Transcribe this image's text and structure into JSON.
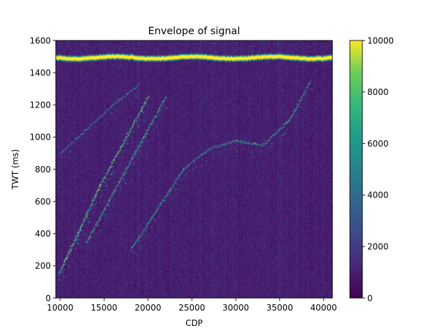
{
  "chart_data": {
    "type": "heatmap",
    "title": "Envelope of signal",
    "xlabel": "CDP",
    "ylabel": "TWT (ms)",
    "xlim": [
      9500,
      41000
    ],
    "ylim": [
      0,
      1600
    ],
    "x_ticks": [
      10000,
      15000,
      20000,
      25000,
      30000,
      35000,
      40000
    ],
    "y_ticks": [
      0,
      200,
      400,
      600,
      800,
      1000,
      1200,
      1400,
      1600
    ],
    "colorbar": {
      "colormap": "viridis",
      "range": [
        0,
        10000
      ],
      "ticks": [
        0,
        2000,
        4000,
        6000,
        8000,
        10000
      ]
    },
    "features": {
      "seafloor_band": {
        "twt_ms": 1495,
        "amplitude": 10000
      },
      "reflectors": [
        {
          "cdp": [
            9800,
            12000,
            14500,
            17500,
            20000
          ],
          "twt": [
            150,
            400,
            700,
            1000,
            1250
          ],
          "amplitude": 8000
        },
        {
          "cdp": [
            13000,
            16000,
            19000,
            22000
          ],
          "twt": [
            350,
            650,
            950,
            1250
          ],
          "amplitude": 6500
        },
        {
          "cdp": [
            18000,
            21000,
            24000,
            27000,
            30000,
            33000,
            36000,
            38500
          ],
          "twt": [
            300,
            550,
            800,
            930,
            980,
            950,
            1100,
            1350
          ],
          "amplitude": 6000
        },
        {
          "cdp": [
            10000,
            13000,
            16000,
            19000
          ],
          "twt": [
            900,
            1050,
            1200,
            1330
          ],
          "amplitude": 5000
        }
      ],
      "background_amplitude": 800
    }
  },
  "colors": {
    "viridis_low": "#440154",
    "viridis_mid": "#21918c",
    "viridis_high": "#fde725"
  }
}
